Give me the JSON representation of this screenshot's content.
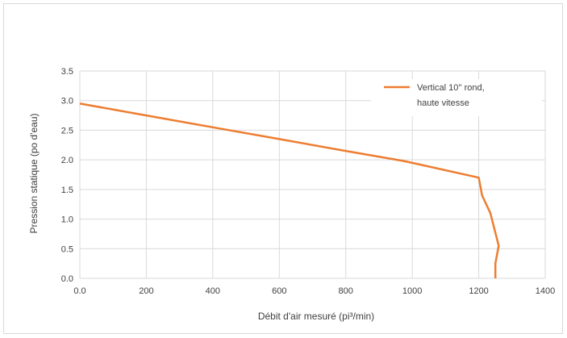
{
  "chart_data": {
    "type": "line",
    "title": "",
    "xlabel": "Débit d'air mesuré (pi³/min)",
    "ylabel": "Pression statique (po d'eau)",
    "xlim": [
      0,
      1400
    ],
    "ylim": [
      0,
      3.5
    ],
    "x_ticks": [
      "0.0",
      "200",
      "400",
      "600",
      "800",
      "1000",
      "1200",
      "1400"
    ],
    "y_ticks": [
      "0.0",
      "0.5",
      "1.0",
      "1.5",
      "2.0",
      "2.5",
      "3.0",
      "3.5"
    ],
    "grid": "vertical and horizontal",
    "legend_position": "top-right",
    "series": [
      {
        "name_line1": "Vertical 10'' rond,",
        "name_line2": "haute vitesse",
        "color": "#ED7D31",
        "x": [
          0,
          200,
          400,
          600,
          800,
          975,
          1200,
          1210,
          1235,
          1260,
          1250,
          1250
        ],
        "y": [
          2.95,
          2.75,
          2.55,
          2.35,
          2.15,
          1.98,
          1.7,
          1.4,
          1.1,
          0.55,
          0.25,
          0.0
        ]
      }
    ]
  }
}
